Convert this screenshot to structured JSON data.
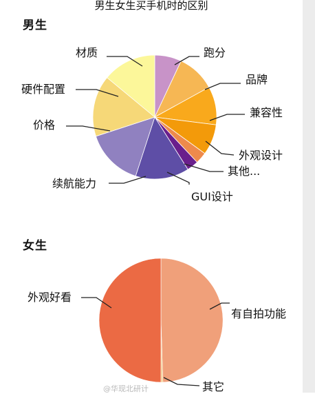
{
  "header": {
    "title": "男生女生买手机时的区别"
  },
  "chart_data": [
    {
      "type": "pie",
      "title": "男生",
      "categories": [
        "跑分",
        "品牌",
        "兼容性",
        "外观设计",
        "其他...",
        "GUI设计",
        "续航能力",
        "价格",
        "硬件配置",
        "材质"
      ],
      "values": [
        7,
        10,
        10,
        8,
        3,
        3,
        14,
        15,
        16,
        14
      ],
      "colors": [
        "#c893c8",
        "#f6b754",
        "#f9a91c",
        "#f39a0a",
        "#ee8a4c",
        "#6a1f8c",
        "#5e4ea6",
        "#9081c0",
        "#f6d878",
        "#fcf79a"
      ]
    },
    {
      "type": "pie",
      "title": "女生",
      "categories": [
        "有自拍功能",
        "其它",
        "外观好看"
      ],
      "values": [
        49.5,
        0.5,
        50
      ],
      "colors": [
        "#f0a07a",
        "#f3c986",
        "#eb6a44"
      ]
    }
  ],
  "watermark": "@华现北研计"
}
